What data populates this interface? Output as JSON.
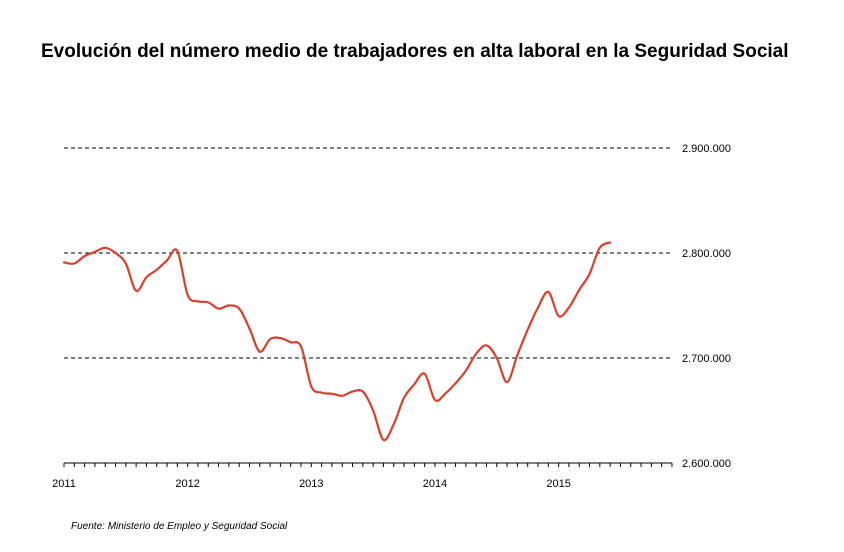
{
  "title": "Evolución del número medio de trabajadores en alta laboral en la Seguridad Social",
  "source": "Fuente: Ministerio de Empleo y Seguridad Social",
  "colors": {
    "line": "#d8402c",
    "grid": "#000000"
  },
  "chart_data": {
    "type": "line",
    "title": "Evolución del número medio de trabajadores en alta laboral en la Seguridad Social",
    "xlabel": "",
    "ylabel": "",
    "x_tick_labels": [
      "2011",
      "2012",
      "2013",
      "2014",
      "2015"
    ],
    "y_tick_labels": [
      "2.600.000",
      "2.700.000",
      "2.800.000",
      "2.900.000"
    ],
    "y_ticks": [
      2600000,
      2700000,
      2800000,
      2900000
    ],
    "ylim": [
      2600000,
      2900000
    ],
    "xlim": [
      2011.0,
      2015.917
    ],
    "grid": "dashed horizontal",
    "y_axis_position": "right",
    "series": [
      {
        "x": [
          2011.0,
          2011.083,
          2011.167,
          2011.25,
          2011.333,
          2011.417,
          2011.5,
          2011.583,
          2011.667,
          2011.75,
          2011.833,
          2011.917,
          2012.0,
          2012.083,
          2012.167,
          2012.25,
          2012.333,
          2012.417,
          2012.5,
          2012.583,
          2012.667,
          2012.75,
          2012.833,
          2012.917,
          2013.0,
          2013.083,
          2013.167,
          2013.25,
          2013.333,
          2013.417,
          2013.5,
          2013.583,
          2013.667,
          2013.75,
          2013.833,
          2013.917,
          2014.0,
          2014.083,
          2014.167,
          2014.25,
          2014.333,
          2014.417,
          2014.5,
          2014.583,
          2014.667,
          2014.75,
          2014.833,
          2014.917,
          2015.0,
          2015.083,
          2015.167,
          2015.25,
          2015.333,
          2015.417
        ],
        "values": [
          2791000,
          2790000,
          2797000,
          2801000,
          2805000,
          2800000,
          2790000,
          2764000,
          2777000,
          2784000,
          2793000,
          2802000,
          2760000,
          2754000,
          2753000,
          2747000,
          2750000,
          2747000,
          2728000,
          2706000,
          2718000,
          2719000,
          2715000,
          2711000,
          2673000,
          2667000,
          2666000,
          2664000,
          2668000,
          2668000,
          2650000,
          2622000,
          2637000,
          2662000,
          2675000,
          2685000,
          2660000,
          2666000,
          2676000,
          2688000,
          2704000,
          2712000,
          2700000,
          2677000,
          2703000,
          2727000,
          2748000,
          2763000,
          2740000,
          2748000,
          2765000,
          2780000,
          2805000,
          2810000
        ]
      }
    ]
  }
}
